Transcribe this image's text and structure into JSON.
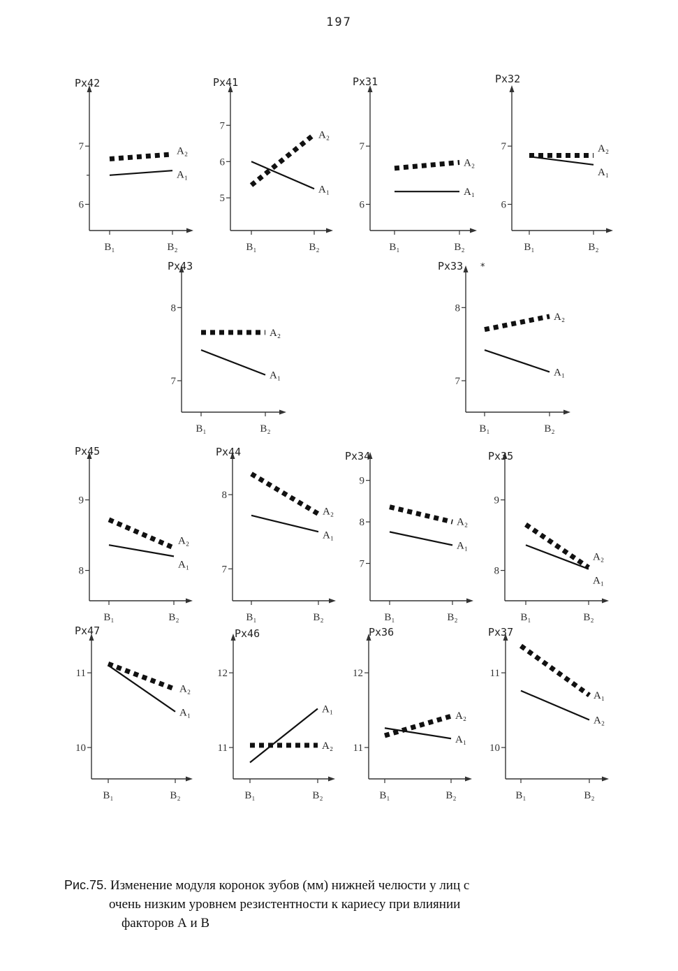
{
  "page_number": "197",
  "caption": {
    "label": "Рис.75.",
    "line1": "Изменение модуля коронок зубов (мм) нижней челюсти у лиц с",
    "line2": "очень низким уровнем резистентности к кариесу при влиянии",
    "line3": "факторов А и В"
  },
  "chart_data": [
    {
      "type": "line",
      "title": "Px42",
      "categories": [
        "B₁",
        "B₂"
      ],
      "ylim": [
        5.55,
        7.95
      ],
      "yticks": [
        6,
        7
      ],
      "ytick_labels": [
        "6",
        "7"
      ],
      "minor_ticks": [
        6.5
      ],
      "series": [
        {
          "name": "A₁",
          "values": [
            6.5,
            6.58
          ],
          "style": "solid"
        },
        {
          "name": "A₂",
          "values": [
            6.78,
            6.86
          ],
          "style": "dashed"
        }
      ]
    },
    {
      "type": "line",
      "title": "Px41",
      "categories": [
        "B₁",
        "B₂"
      ],
      "ylim": [
        4.1,
        7.95
      ],
      "yticks": [
        5,
        6,
        7
      ],
      "ytick_labels": [
        "5",
        "6",
        "7"
      ],
      "series": [
        {
          "name": "A₁",
          "values": [
            6.0,
            5.25
          ],
          "style": "solid"
        },
        {
          "name": "A₂",
          "values": [
            5.35,
            6.75
          ],
          "style": "dashed"
        }
      ]
    },
    {
      "type": "line",
      "title": "Px31",
      "categories": [
        "B₁",
        "B₂"
      ],
      "ylim": [
        5.55,
        7.95
      ],
      "yticks": [
        6,
        7
      ],
      "ytick_labels": [
        "6",
        "7"
      ],
      "series": [
        {
          "name": "A₁",
          "values": [
            6.22,
            6.22
          ],
          "style": "solid"
        },
        {
          "name": "A₂",
          "values": [
            6.62,
            6.72
          ],
          "style": "dashed"
        }
      ]
    },
    {
      "type": "line",
      "title": "Px32",
      "categories": [
        "B₁",
        "B₂"
      ],
      "ylim": [
        5.55,
        7.95
      ],
      "yticks": [
        6,
        7
      ],
      "ytick_labels": [
        "6",
        "7"
      ],
      "series": [
        {
          "name": "A₁",
          "values": [
            6.82,
            6.68
          ],
          "style": "solid"
        },
        {
          "name": "A₂",
          "values": [
            6.84,
            6.84
          ],
          "style": "dashed"
        }
      ]
    },
    {
      "type": "line",
      "title": "Px43",
      "categories": [
        "B₁",
        "B₂"
      ],
      "ylim": [
        6.57,
        8.5
      ],
      "yticks": [
        7,
        8
      ],
      "ytick_labels": [
        "7",
        "8"
      ],
      "series": [
        {
          "name": "A₁",
          "values": [
            7.42,
            7.08
          ],
          "style": "solid"
        },
        {
          "name": "A₂",
          "values": [
            7.66,
            7.66
          ],
          "style": "dashed"
        }
      ]
    },
    {
      "type": "line",
      "title": "Px33",
      "marker": "*",
      "categories": [
        "B₁",
        "B₂"
      ],
      "ylim": [
        6.57,
        8.5
      ],
      "yticks": [
        7,
        8
      ],
      "ytick_labels": [
        "7",
        "8"
      ],
      "series": [
        {
          "name": "A₁",
          "values": [
            7.42,
            7.12
          ],
          "style": "solid"
        },
        {
          "name": "A₂",
          "values": [
            7.7,
            7.88
          ],
          "style": "dashed"
        }
      ]
    },
    {
      "type": "line",
      "title": "Px45",
      "categories": [
        "B₁",
        "B₂"
      ],
      "ylim": [
        7.57,
        9.6
      ],
      "yticks": [
        8,
        9
      ],
      "ytick_labels": [
        "8",
        "9"
      ],
      "series": [
        {
          "name": "A₁",
          "values": [
            8.36,
            8.2
          ],
          "style": "solid"
        },
        {
          "name": "A₂",
          "values": [
            8.72,
            8.32
          ],
          "style": "dashed"
        }
      ]
    },
    {
      "type": "line",
      "title": "Px44",
      "categories": [
        "B₁",
        "B₂"
      ],
      "ylim": [
        6.57,
        8.5
      ],
      "yticks": [
        7,
        8
      ],
      "ytick_labels": [
        "7",
        "8"
      ],
      "series": [
        {
          "name": "A₁",
          "values": [
            7.72,
            7.5
          ],
          "style": "solid"
        },
        {
          "name": "A₂",
          "values": [
            8.28,
            7.74
          ],
          "style": "dashed"
        }
      ]
    },
    {
      "type": "line",
      "title": "Px34",
      "categories": [
        "B₁",
        "B₂"
      ],
      "ylim": [
        6.1,
        9.55
      ],
      "yticks": [
        7,
        8,
        9
      ],
      "ytick_labels": [
        "7",
        "8",
        "9"
      ],
      "series": [
        {
          "name": "A₁",
          "values": [
            7.76,
            7.44
          ],
          "style": "solid"
        },
        {
          "name": "A₂",
          "values": [
            8.36,
            8.0
          ],
          "style": "dashed"
        }
      ]
    },
    {
      "type": "line",
      "title": "Px35",
      "categories": [
        "B₁",
        "B₂"
      ],
      "ylim": [
        7.57,
        9.6
      ],
      "yticks": [
        8,
        9
      ],
      "ytick_labels": [
        "8",
        "9"
      ],
      "series": [
        {
          "name": "A₁",
          "values": [
            8.36,
            8.02
          ],
          "style": "solid"
        },
        {
          "name": "A₂",
          "values": [
            8.65,
            8.04
          ],
          "style": "dashed"
        }
      ]
    },
    {
      "type": "line",
      "title": "Px47",
      "categories": [
        "B₁",
        "B₂"
      ],
      "ylim": [
        9.58,
        11.45
      ],
      "yticks": [
        10,
        11
      ],
      "ytick_labels": [
        "10",
        "11"
      ],
      "series": [
        {
          "name": "A₁",
          "values": [
            11.1,
            10.48
          ],
          "style": "solid"
        },
        {
          "name": "A₂",
          "values": [
            11.12,
            10.78
          ],
          "style": "dashed"
        }
      ]
    },
    {
      "type": "line",
      "title": "Px46",
      "categories": [
        "B₁",
        "B₂"
      ],
      "ylim": [
        10.58,
        12.45
      ],
      "yticks": [
        11,
        12
      ],
      "ytick_labels": [
        "11",
        "12"
      ],
      "series": [
        {
          "name": "A₁",
          "values": [
            10.8,
            11.52
          ],
          "style": "solid"
        },
        {
          "name": "A₂",
          "values": [
            11.03,
            11.03
          ],
          "style": "dashed"
        }
      ]
    },
    {
      "type": "line",
      "title": "Px36",
      "categories": [
        "B₁",
        "B₂"
      ],
      "ylim": [
        10.58,
        12.45
      ],
      "yticks": [
        11,
        12
      ],
      "ytick_labels": [
        "11",
        "12"
      ],
      "series": [
        {
          "name": "A₁",
          "values": [
            11.26,
            11.12
          ],
          "style": "solid"
        },
        {
          "name": "A₂",
          "values": [
            11.16,
            11.42
          ],
          "style": "dashed"
        }
      ]
    },
    {
      "type": "line",
      "title": "Px37",
      "categories": [
        "B₁",
        "B₂"
      ],
      "ylim": [
        9.58,
        11.45
      ],
      "yticks": [
        10,
        11
      ],
      "ytick_labels": [
        "10",
        "11"
      ],
      "series": [
        {
          "name": "A₂",
          "values": [
            10.76,
            10.37
          ],
          "style": "solid"
        },
        {
          "name": "A₁",
          "values": [
            11.36,
            10.7
          ],
          "style": "dashed"
        }
      ]
    }
  ]
}
